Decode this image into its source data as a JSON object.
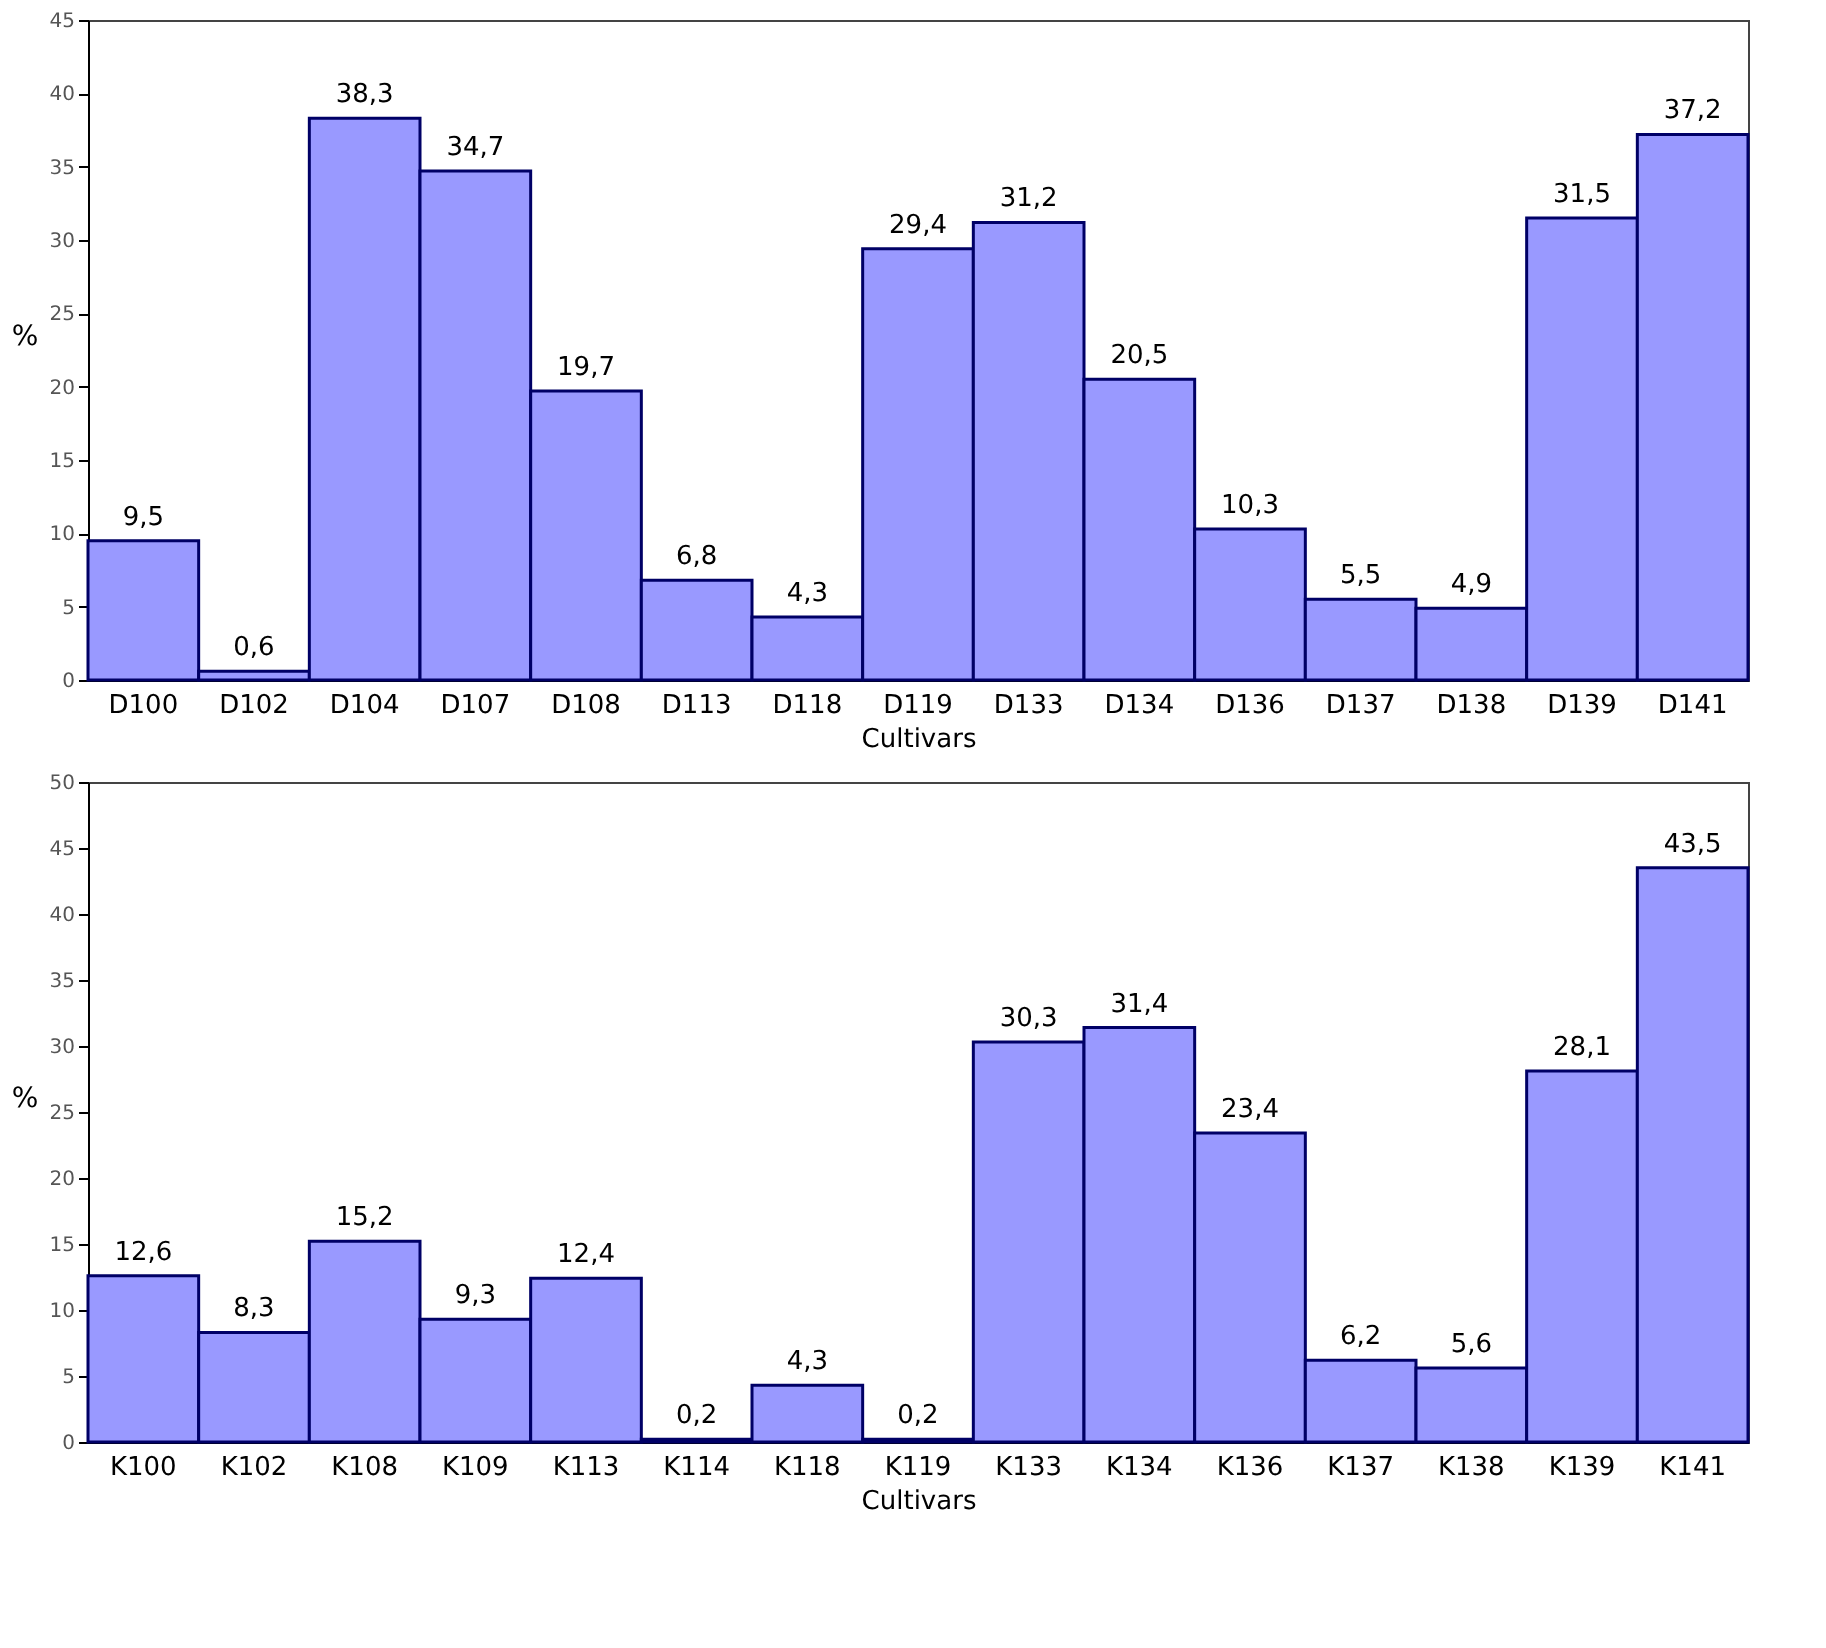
{
  "chart_data": [
    {
      "type": "bar",
      "xlabel": "Cultivars",
      "ylabel": "%",
      "categories": [
        "D100",
        "D102",
        "D104",
        "D107",
        "D108",
        "D113",
        "D118",
        "D119",
        "D133",
        "D134",
        "D136",
        "D137",
        "D138",
        "D139",
        "D141"
      ],
      "values": [
        9.5,
        0.6,
        38.3,
        34.7,
        19.7,
        6.8,
        4.3,
        29.4,
        31.2,
        20.5,
        10.3,
        5.5,
        4.9,
        31.5,
        37.2
      ],
      "value_labels": [
        "9,5",
        "0,6",
        "38,3",
        "34,7",
        "19,7",
        "6,8",
        "4,3",
        "29,4",
        "31,2",
        "20,5",
        "10,3",
        "5,5",
        "4,9",
        "31,5",
        "37,2"
      ],
      "color": "#9999ff",
      "ylim": [
        0,
        45
      ],
      "yticks": [
        0,
        5,
        10,
        15,
        20,
        25,
        30,
        35,
        40,
        45
      ],
      "grid": false
    },
    {
      "type": "bar",
      "xlabel": "Cultivars",
      "ylabel": "%",
      "categories": [
        "K100",
        "K102",
        "K108",
        "K109",
        "K113",
        "K114",
        "K118",
        "K119",
        "K133",
        "K134",
        "K136",
        "K137",
        "K138",
        "K139",
        "K141"
      ],
      "values": [
        12.6,
        8.3,
        15.2,
        9.3,
        12.4,
        0.2,
        4.3,
        0.2,
        30.3,
        31.4,
        23.4,
        6.2,
        5.6,
        28.1,
        43.5
      ],
      "value_labels": [
        "12,6",
        "8,3",
        "15,2",
        "9,3",
        "12,4",
        "0,2",
        "4,3",
        "0,2",
        "30,3",
        "31,4",
        "23,4",
        "6,2",
        "5,6",
        "28,1",
        "43,5"
      ],
      "color": "#9999ff",
      "ylim": [
        0,
        50
      ],
      "yticks": [
        0,
        5,
        10,
        15,
        20,
        25,
        30,
        35,
        40,
        45,
        50
      ],
      "grid": false
    }
  ]
}
